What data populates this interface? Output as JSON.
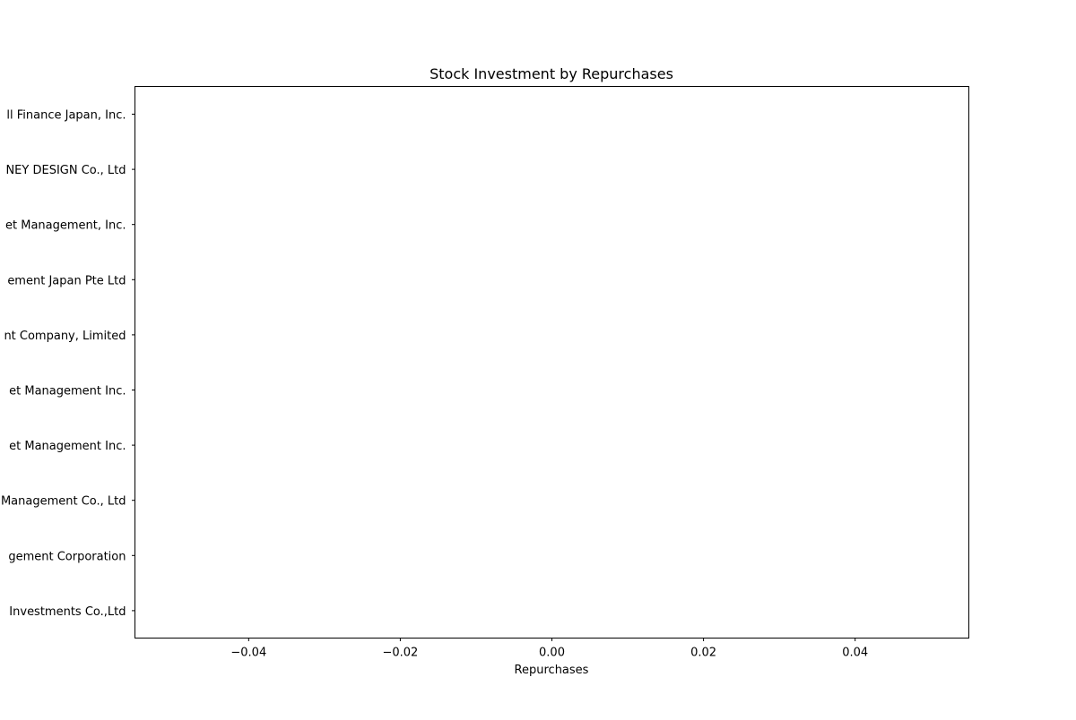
{
  "chart_data": {
    "type": "bar",
    "orientation": "horizontal",
    "title": "Stock Investment by Repurchases",
    "xlabel": "Repurchases",
    "ylabel": "",
    "categories": [
      "ll Finance Japan, Inc.",
      "NEY DESIGN Co., Ltd",
      "et Management, Inc.",
      "ement Japan Pte Ltd",
      "nt Company, Limited",
      "et Management Inc.",
      "et Management Inc.",
      "Management Co., Ltd",
      "gement Corporation",
      " Investments Co.,Ltd"
    ],
    "values": [
      0,
      0,
      0,
      0,
      0,
      0,
      0,
      0,
      0,
      0
    ],
    "xlim": [
      -0.055,
      0.055
    ],
    "xticks": [
      -0.04,
      -0.02,
      0.0,
      0.02,
      0.04
    ],
    "xtick_labels": [
      "−0.04",
      "−0.02",
      "0.00",
      "0.02",
      "0.04"
    ],
    "grid": false,
    "legend": "none",
    "colors": {
      "axis": "#000000",
      "background": "#ffffff"
    }
  }
}
